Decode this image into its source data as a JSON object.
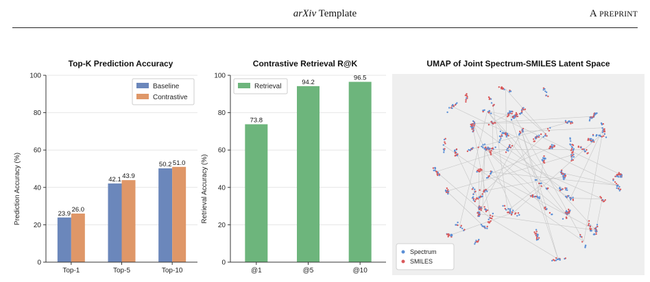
{
  "header": {
    "title_italic": "arXiv",
    "title_rest": " Template",
    "right_first": "A ",
    "right_smallcaps": "PREPRINT"
  },
  "chart_data": [
    {
      "type": "bar",
      "title": "Top-K Prediction Accuracy",
      "ylabel": "Prediction Accuracy (%)",
      "xlabel": "",
      "categories": [
        "Top-1",
        "Top-5",
        "Top-10"
      ],
      "series": [
        {
          "name": "Baseline",
          "values": [
            23.9,
            42.1,
            50.2
          ],
          "color": "#6b87bb"
        },
        {
          "name": "Contrastive",
          "values": [
            26.0,
            43.9,
            51.0
          ],
          "color": "#df9768"
        }
      ],
      "value_labels": [
        [
          "23.9",
          "42.1",
          "50.2"
        ],
        [
          "26.0",
          "43.9",
          "51.0"
        ]
      ],
      "ylim": [
        0,
        100
      ],
      "yticks": [
        0,
        20,
        40,
        60,
        80,
        100
      ],
      "grid": true,
      "legend": "top-right"
    },
    {
      "type": "bar",
      "title": "Contrastive Retrieval R@K",
      "ylabel": "Retrieval Accuracy (%)",
      "xlabel": "",
      "categories": [
        "@1",
        "@5",
        "@10"
      ],
      "series": [
        {
          "name": "Retrieval",
          "values": [
            73.8,
            94.2,
            96.5
          ],
          "color": "#6db57c"
        }
      ],
      "value_labels": [
        [
          "73.8",
          "94.2",
          "96.5"
        ]
      ],
      "ylim": [
        0,
        100
      ],
      "yticks": [
        0,
        20,
        40,
        60,
        80,
        100
      ],
      "grid": true,
      "legend": "top-left"
    },
    {
      "type": "scatter",
      "title": "UMAP of Joint Spectrum-SMILES Latent Space",
      "xlabel": "",
      "ylabel": "",
      "series": [
        {
          "name": "Spectrum",
          "color": "#5b8fd6"
        },
        {
          "name": "SMILES",
          "color": "#d9595b"
        }
      ],
      "background": "#efefef",
      "link_color": "#c4c4c4",
      "axes": false,
      "legend": "bottom-left"
    }
  ]
}
